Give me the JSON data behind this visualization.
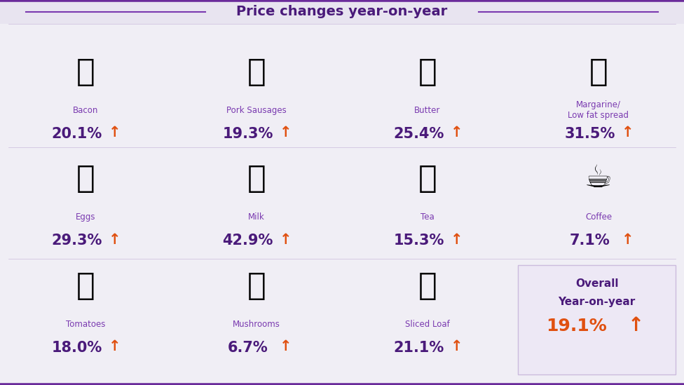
{
  "title": "Price changes year-on-year",
  "bg_color": "#f0eef5",
  "header_bg": "#e8e4f0",
  "title_color": "#4a1a7a",
  "purple_color": "#4a1a7a",
  "orange_color": "#e05010",
  "label_color": "#7a3ab0",
  "border_color": "#6a2a9a",
  "overall_bg": "#ede8f5",
  "items": [
    {
      "name": "Bacon",
      "value": "20.1%",
      "emoji": "🥓",
      "col": 0,
      "row": 0
    },
    {
      "name": "Pork Sausages",
      "value": "19.3%",
      "emoji": "🌭",
      "col": 1,
      "row": 0
    },
    {
      "name": "Butter",
      "value": "25.4%",
      "emoji": "🧈",
      "col": 2,
      "row": 0
    },
    {
      "name": "Margarine/\nLow fat spread",
      "value": "31.5%",
      "emoji": "🧈",
      "col": 3,
      "row": 0
    },
    {
      "name": "Eggs",
      "value": "29.3%",
      "emoji": "🍳",
      "col": 0,
      "row": 1
    },
    {
      "name": "Milk",
      "value": "42.9%",
      "emoji": "🥛",
      "col": 1,
      "row": 1
    },
    {
      "name": "Tea",
      "value": "15.3%",
      "emoji": "☕",
      "col": 2,
      "row": 1
    },
    {
      "name": "Coffee",
      "value": "7.1%",
      "emoji": "☕",
      "col": 3,
      "row": 1
    },
    {
      "name": "Tomatoes",
      "value": "18.0%",
      "emoji": "🍅",
      "col": 0,
      "row": 2
    },
    {
      "name": "Mushrooms",
      "value": "6.7%",
      "emoji": "🍄",
      "col": 1,
      "row": 2
    },
    {
      "name": "Sliced Loaf",
      "value": "21.1%",
      "emoji": "🍞",
      "col": 2,
      "row": 2
    }
  ],
  "overall_value": "19.1%",
  "overall_label1": "Overall",
  "overall_label2": "Year-on-year"
}
